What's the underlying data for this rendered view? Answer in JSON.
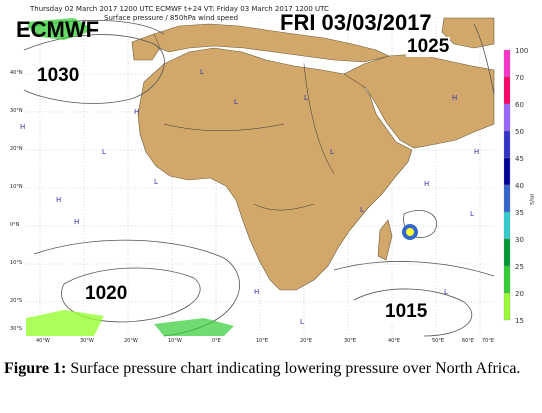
{
  "header": {
    "line1": "Thursday 02 March 2017 1200 UTC  ECMWF  t+24  VT: Friday 03 March 2017 1200 UTC",
    "line2": "Surface pressure / 850hPa wind speed"
  },
  "overlay": {
    "source": "ECMWF",
    "date": "FRI 03/03/2017"
  },
  "pressure_labels": [
    "1030",
    "1025",
    "1020",
    "1015"
  ],
  "colorbar": {
    "unit": "m/s",
    "ticks": [
      "100",
      "70",
      "60",
      "50",
      "45",
      "40",
      "35",
      "30",
      "25",
      "20",
      "15"
    ],
    "colors": [
      "#ff33cc",
      "#ff0066",
      "#9966ff",
      "#3333cc",
      "#000099",
      "#3366cc",
      "#33cccc",
      "#009933",
      "#33cc33",
      "#99ff33",
      "#ffff33"
    ]
  },
  "longitude_labels": [
    "40°W",
    "30°W",
    "20°W",
    "10°W",
    "0°E",
    "10°E",
    "20°E",
    "30°E",
    "40°E",
    "50°E",
    "60°E",
    "70°E"
  ],
  "latitude_labels": [
    "40°N",
    "30°N",
    "20°N",
    "10°N",
    "0°N",
    "10°S",
    "20°S",
    "30°S"
  ],
  "caption": {
    "label": "Figure 1:",
    "text": " Surface pressure chart indicating lowering pressure over North Africa."
  },
  "colors": {
    "land": "#d1a86a",
    "ocean": "#ffffff",
    "graticule": "#bbbbbb",
    "isobar": "#555555"
  }
}
